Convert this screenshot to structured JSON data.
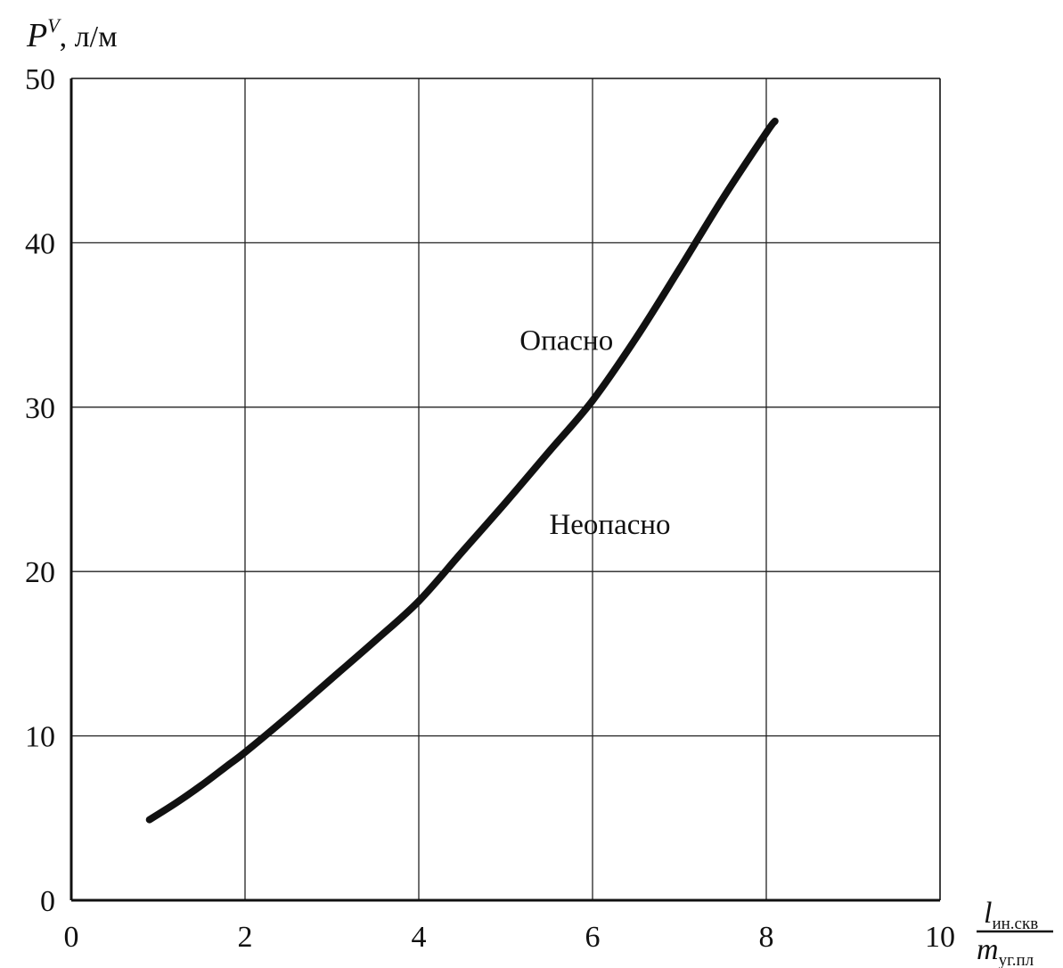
{
  "chart_data": {
    "type": "line",
    "title": "",
    "ylabel": {
      "symbol": "P",
      "superscript": "V",
      "unit": ", л/м"
    },
    "xlabel": {
      "numerator_symbol": "l",
      "numerator_subscript": "ин.скв",
      "denominator_symbol": "m",
      "denominator_subscript": "уг.пл"
    },
    "xlim": [
      0,
      10
    ],
    "ylim": [
      0,
      50
    ],
    "x_ticks": [
      "0",
      "2",
      "4",
      "6",
      "8",
      "10"
    ],
    "y_ticks": [
      "0",
      "10",
      "20",
      "30",
      "40",
      "50"
    ],
    "grid": true,
    "series": [
      {
        "x": [
          0.9,
          1.2,
          1.5,
          1.8,
          2.0,
          2.5,
          3.0,
          3.5,
          4.0,
          4.5,
          5.0,
          5.5,
          6.0,
          6.5,
          7.0,
          7.5,
          8.0,
          8.1
        ],
        "y": [
          4.9,
          5.9,
          7.0,
          8.2,
          9.0,
          11.2,
          13.5,
          15.8,
          18.2,
          21.2,
          24.2,
          27.3,
          30.4,
          34.2,
          38.4,
          42.7,
          46.7,
          47.4
        ]
      }
    ],
    "annotations": [
      {
        "text": "Опасно",
        "x": 5.7,
        "y": 33.5
      },
      {
        "text": "Неопасно",
        "x": 6.2,
        "y": 22.3
      }
    ],
    "colors": {
      "line": "#111111",
      "grid": "#222222",
      "axis": "#111111"
    }
  }
}
